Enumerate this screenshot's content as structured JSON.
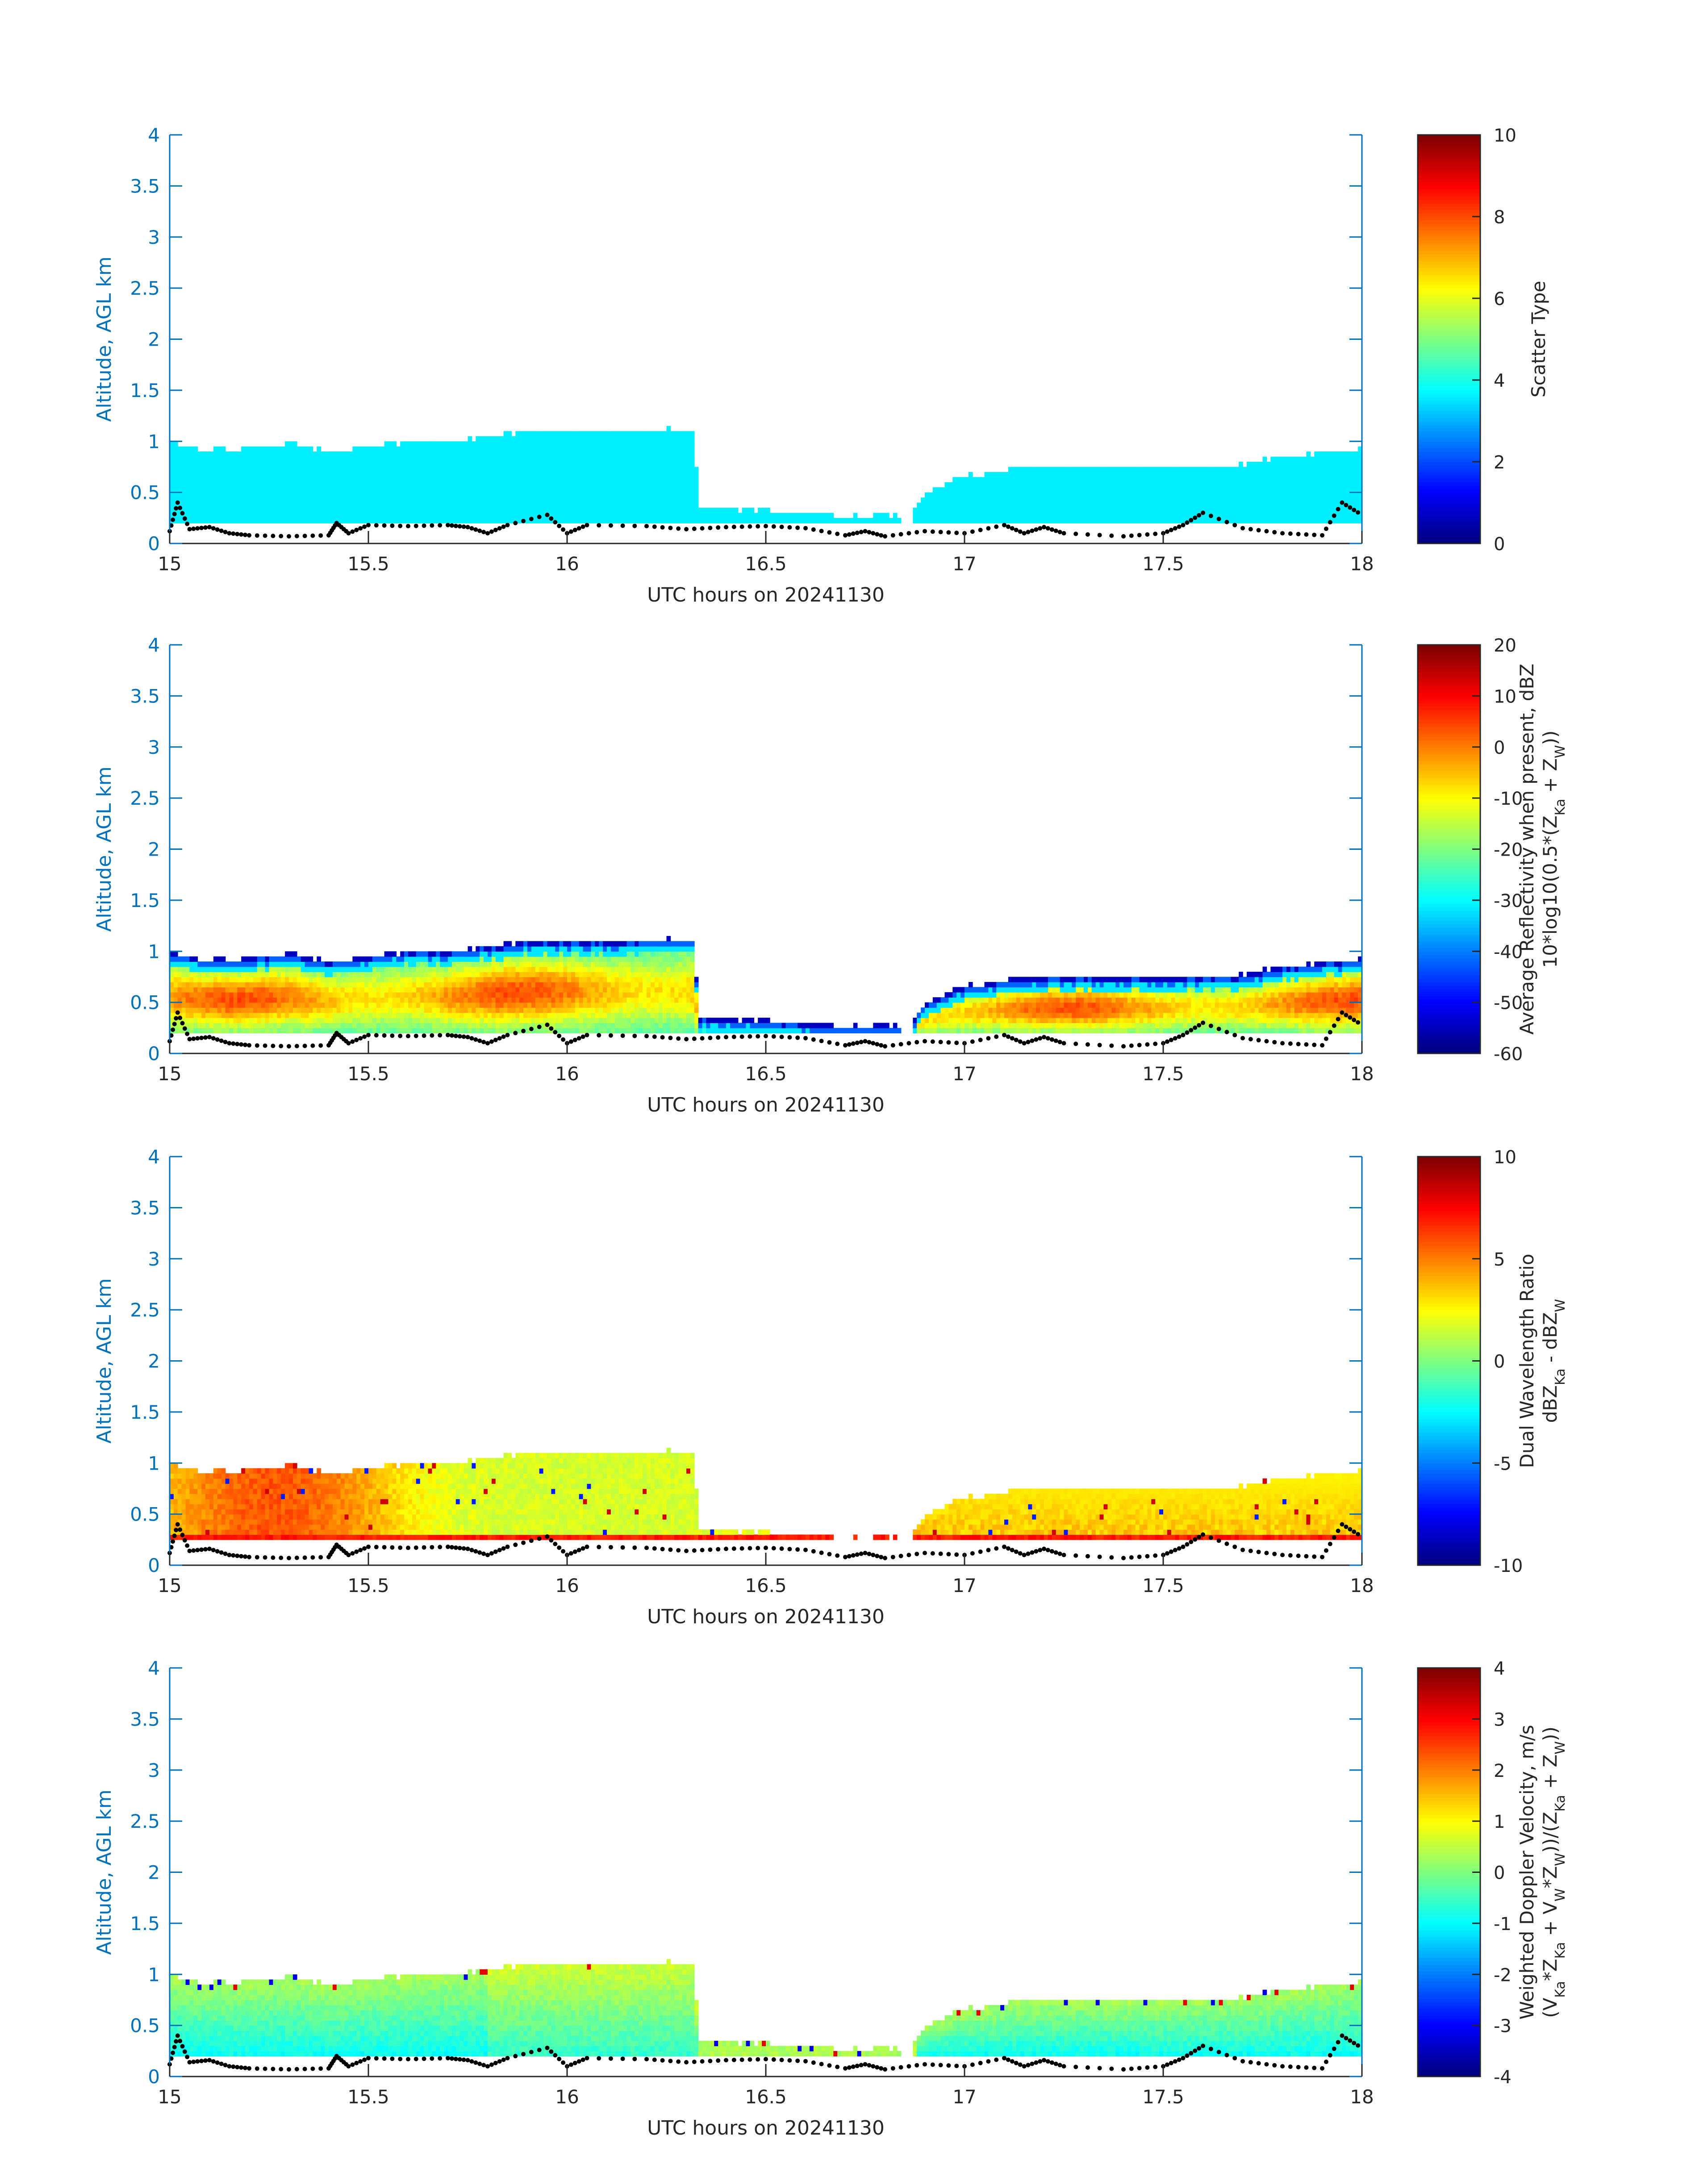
{
  "figure": {
    "axis_color": "#0072BD",
    "ground_dot_color": "#000000"
  },
  "chart_data": [
    {
      "type": "heatmap",
      "name": "scatter-type",
      "xlabel": "UTC hours on 20241130",
      "ylabel": "Altitude, AGL km",
      "xlim": [
        15,
        18
      ],
      "ylim": [
        0,
        4
      ],
      "xticks": [
        "15",
        "15.5",
        "16",
        "16.5",
        "17",
        "17.5",
        "18"
      ],
      "yticks": [
        "0",
        "0.5",
        "1",
        "1.5",
        "2",
        "2.5",
        "3",
        "3.5",
        "4"
      ],
      "colorbar": {
        "label_lines": [
          "Scatter Type"
        ],
        "range": [
          0,
          10
        ],
        "ticks": [
          "0",
          "2",
          "4",
          "6",
          "8",
          "10"
        ],
        "colormap": "jet"
      },
      "field_mode": "scatter",
      "field_constant": 3.6
    },
    {
      "type": "heatmap",
      "name": "reflectivity",
      "xlabel": "UTC hours on 20241130",
      "ylabel": "Altitude, AGL km",
      "xlim": [
        15,
        18
      ],
      "ylim": [
        0,
        4
      ],
      "xticks": [
        "15",
        "15.5",
        "16",
        "16.5",
        "17",
        "17.5",
        "18"
      ],
      "yticks": [
        "0",
        "0.5",
        "1",
        "1.5",
        "2",
        "2.5",
        "3",
        "3.5",
        "4"
      ],
      "colorbar": {
        "label_lines": [
          "Average Reflectivity when present, dBZ",
          "10*log10(0.5*(Z_Ka + Z_W))"
        ],
        "range": [
          -60,
          20
        ],
        "ticks": [
          "-60",
          "-50",
          "-40",
          "-30",
          "-20",
          "-10",
          "0",
          "10",
          "20"
        ],
        "colormap": "jet"
      },
      "field_mode": "reflectivity"
    },
    {
      "type": "heatmap",
      "name": "dual-wavelength-ratio",
      "xlabel": "UTC hours on 20241130",
      "ylabel": "Altitude, AGL km",
      "xlim": [
        15,
        18
      ],
      "ylim": [
        0,
        4
      ],
      "xticks": [
        "15",
        "15.5",
        "16",
        "16.5",
        "17",
        "17.5",
        "18"
      ],
      "yticks": [
        "0",
        "0.5",
        "1",
        "1.5",
        "2",
        "2.5",
        "3",
        "3.5",
        "4"
      ],
      "colorbar": {
        "label_lines": [
          "Dual Wavelength Ratio",
          "dBZ_Ka - dBZ_W"
        ],
        "range": [
          -10,
          10
        ],
        "ticks": [
          "-10",
          "-5",
          "0",
          "5",
          "10"
        ],
        "colormap": "jet"
      },
      "field_mode": "dwr"
    },
    {
      "type": "heatmap",
      "name": "doppler-velocity",
      "xlabel": "UTC hours on 20241130",
      "ylabel": "Altitude, AGL km",
      "xlim": [
        15,
        18
      ],
      "ylim": [
        0,
        4
      ],
      "xticks": [
        "15",
        "15.5",
        "16",
        "16.5",
        "17",
        "17.5",
        "18"
      ],
      "yticks": [
        "0",
        "0.5",
        "1",
        "1.5",
        "2",
        "2.5",
        "3",
        "3.5",
        "4"
      ],
      "colorbar": {
        "label_lines": [
          "Weighted Doppler Velocity, m/s",
          "(V_Ka*Z_Ka + V_W*Z_W))/(Z_Ka + Z_W))"
        ],
        "range": [
          -4,
          4
        ],
        "ticks": [
          "-4",
          "-3",
          "-2",
          "-1",
          "0",
          "1",
          "2",
          "3",
          "4"
        ],
        "colormap": "jet"
      },
      "field_mode": "velocity"
    }
  ],
  "profile": {
    "cloud_top_km": [
      [
        15.0,
        1.0
      ],
      [
        15.05,
        0.95
      ],
      [
        15.1,
        0.92
      ],
      [
        15.2,
        0.93
      ],
      [
        15.3,
        0.98
      ],
      [
        15.4,
        0.9
      ],
      [
        15.5,
        0.95
      ],
      [
        15.6,
        1.0
      ],
      [
        15.7,
        1.0
      ],
      [
        15.8,
        1.05
      ],
      [
        15.9,
        1.1
      ],
      [
        16.0,
        1.1
      ],
      [
        16.1,
        1.1
      ],
      [
        16.2,
        1.12
      ],
      [
        16.32,
        1.12
      ],
      [
        16.33,
        0.35
      ],
      [
        16.5,
        0.33
      ],
      [
        16.6,
        0.3
      ],
      [
        16.7,
        0.27
      ],
      [
        16.8,
        0.28
      ],
      [
        16.86,
        0.25
      ],
      [
        16.9,
        0.5
      ],
      [
        17.0,
        0.66
      ],
      [
        17.1,
        0.72
      ],
      [
        17.2,
        0.75
      ],
      [
        17.5,
        0.74
      ],
      [
        17.7,
        0.77
      ],
      [
        17.8,
        0.85
      ],
      [
        18.0,
        0.93
      ]
    ],
    "cloud_base_km": 0.2,
    "gap_hours": [
      16.84,
      16.87
    ],
    "dwr_base_band_km": [
      0.25,
      0.3
    ],
    "ground_points": [
      [
        15.0,
        0.12
      ],
      [
        15.02,
        0.4
      ],
      [
        15.05,
        0.14
      ],
      [
        15.1,
        0.16
      ],
      [
        15.15,
        0.1
      ],
      [
        15.2,
        0.08
      ],
      [
        15.3,
        0.07
      ],
      [
        15.4,
        0.08
      ],
      [
        15.42,
        0.2
      ],
      [
        15.45,
        0.1
      ],
      [
        15.5,
        0.18
      ],
      [
        15.6,
        0.17
      ],
      [
        15.7,
        0.18
      ],
      [
        15.75,
        0.16
      ],
      [
        15.8,
        0.1
      ],
      [
        15.85,
        0.18
      ],
      [
        15.95,
        0.28
      ],
      [
        16.0,
        0.1
      ],
      [
        16.05,
        0.18
      ],
      [
        16.2,
        0.17
      ],
      [
        16.3,
        0.14
      ],
      [
        16.4,
        0.16
      ],
      [
        16.5,
        0.17
      ],
      [
        16.6,
        0.15
      ],
      [
        16.7,
        0.08
      ],
      [
        16.75,
        0.12
      ],
      [
        16.8,
        0.07
      ],
      [
        16.9,
        0.12
      ],
      [
        17.0,
        0.1
      ],
      [
        17.1,
        0.18
      ],
      [
        17.15,
        0.1
      ],
      [
        17.2,
        0.16
      ],
      [
        17.25,
        0.1
      ],
      [
        17.4,
        0.07
      ],
      [
        17.5,
        0.1
      ],
      [
        17.55,
        0.18
      ],
      [
        17.6,
        0.3
      ],
      [
        17.7,
        0.15
      ],
      [
        17.8,
        0.1
      ],
      [
        17.9,
        0.08
      ],
      [
        17.95,
        0.4
      ],
      [
        18.0,
        0.28
      ]
    ]
  }
}
